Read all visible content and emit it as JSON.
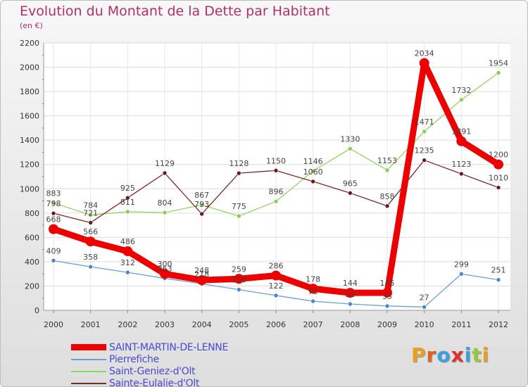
{
  "chart_data": {
    "type": "line",
    "title": "Evolution du Montant de la Dette par Habitant",
    "subtitle": "(en €)",
    "xlabel": "",
    "ylabel": "",
    "categories": [
      "2000",
      "2001",
      "2002",
      "2003",
      "2004",
      "2005",
      "2006",
      "2007",
      "2008",
      "2009",
      "2010",
      "2011",
      "2012"
    ],
    "ylim": [
      0,
      2200
    ],
    "yticks": [
      0,
      200,
      400,
      600,
      800,
      1000,
      1200,
      1400,
      1600,
      1800,
      2000,
      2200
    ],
    "grid": true,
    "legend_position": "bottom-left",
    "series": [
      {
        "name": "SAINT-MARTIN-DE-LENNE",
        "color": "#ee0000",
        "style": "thick",
        "values": [
          668,
          566,
          486,
          300,
          248,
          259,
          286,
          178,
          144,
          145,
          2034,
          1391,
          1200
        ],
        "labels": [
          "668",
          "566",
          "486",
          "300",
          "248",
          "259",
          "286",
          "178",
          "144",
          "145",
          "2034",
          "1391",
          "1200"
        ]
      },
      {
        "name": "Pierrefiche",
        "color": "#6f9fd0",
        "marker": "#4a86c8",
        "style": "thin",
        "values": [
          409,
          358,
          312,
          263,
          218,
          170,
          122,
          75,
          52,
          35,
          27,
          299,
          251
        ],
        "labels": [
          "409",
          "358",
          "312",
          "263",
          "218",
          "170",
          "122",
          "75",
          "52",
          "35",
          "27",
          "299",
          "251"
        ]
      },
      {
        "name": "Saint-Geniez-d'Olt",
        "color": "#94d660",
        "marker": "#8ccc55",
        "style": "thin",
        "values": [
          883,
          784,
          811,
          804,
          867,
          775,
          896,
          1146,
          1330,
          1153,
          1471,
          1732,
          1954
        ],
        "labels": [
          "883",
          "784",
          "811",
          "804",
          "867",
          "775",
          "896",
          "1146",
          "1330",
          "1153",
          "1471",
          "1732",
          "1954"
        ]
      },
      {
        "name": "Sainte-Eulalie-d'Olt",
        "color": "#7a2a2a",
        "marker": "#661b1b",
        "style": "thin",
        "values": [
          798,
          721,
          925,
          1129,
          793,
          1128,
          1150,
          1060,
          965,
          858,
          1235,
          1123,
          1010
        ],
        "labels": [
          "798",
          "721",
          "925",
          "1129",
          "793",
          "1128",
          "1150",
          "1060",
          "965",
          "858",
          "1235",
          "1123",
          "1010"
        ]
      }
    ]
  },
  "logo": {
    "letters": [
      {
        "ch": "P",
        "color": "#e8a020"
      },
      {
        "ch": "r",
        "color": "#e06020"
      },
      {
        "ch": "o",
        "color": "#3aa0e0"
      },
      {
        "ch": "x",
        "color": "#e03030"
      },
      {
        "ch": "i",
        "color": "#3aa0e0"
      },
      {
        "ch": "t",
        "color": "#9ac83a"
      },
      {
        "ch": "i",
        "color": "#e8a020"
      }
    ]
  }
}
